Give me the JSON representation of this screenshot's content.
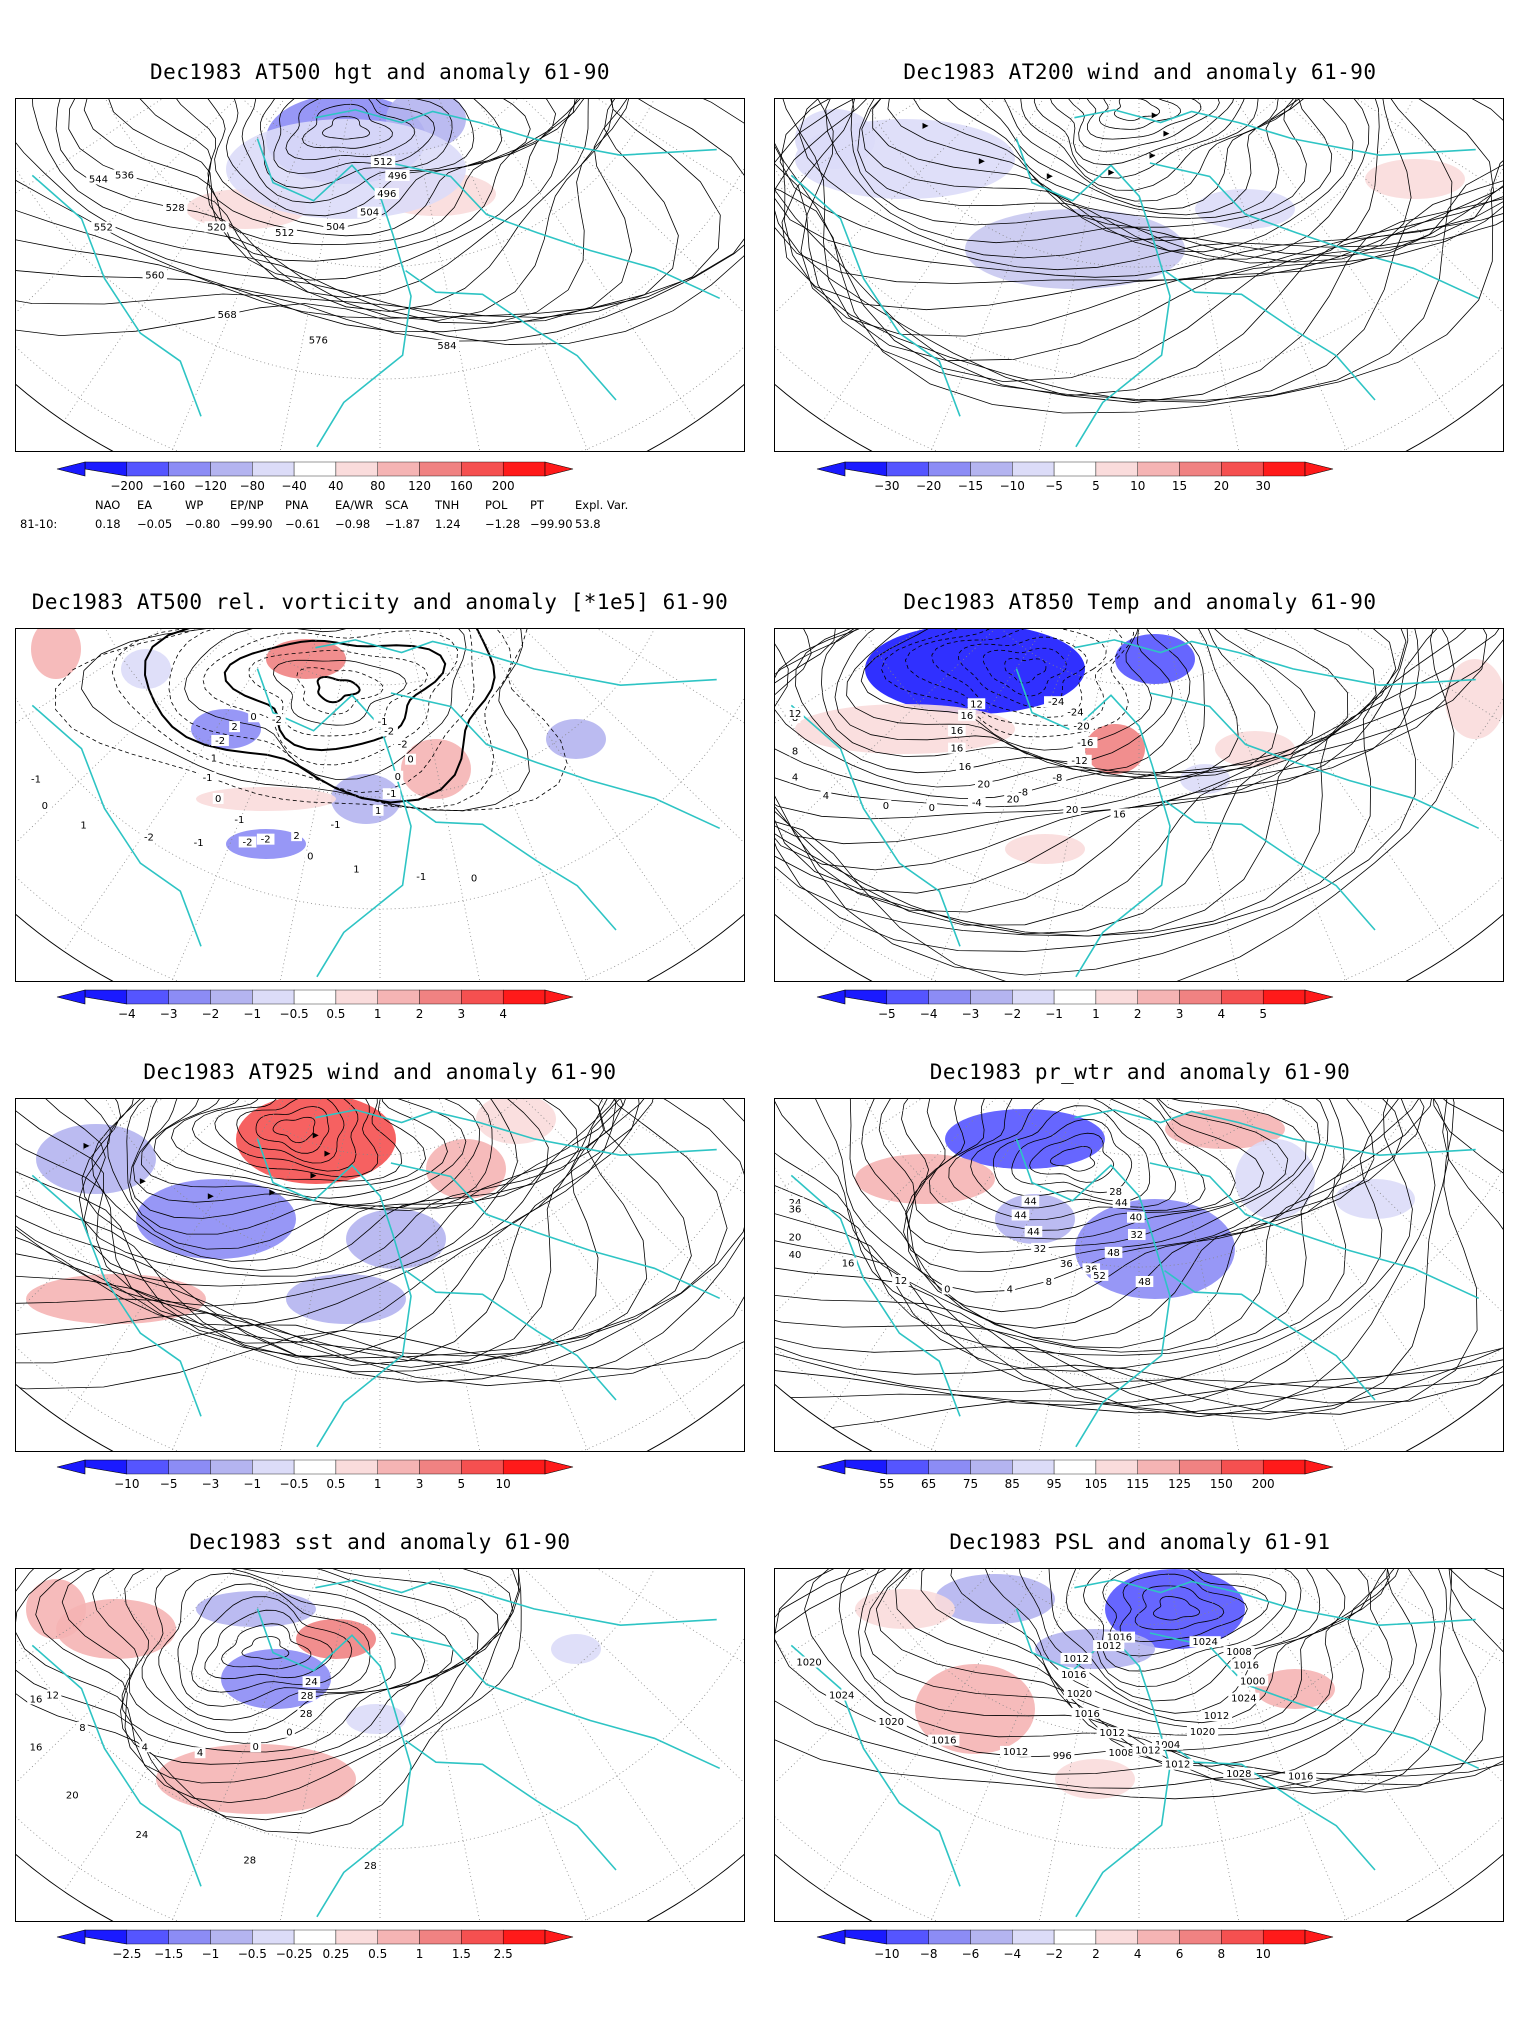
{
  "panels": [
    {
      "id": "p1",
      "title": "Dec1983 AT500 hgt and anomaly 61-90",
      "colorbar": [
        "−200",
        "−160",
        "−120",
        "−80",
        "−40",
        "40",
        "80",
        "120",
        "160",
        "200"
      ],
      "contour_labels": [
        "512",
        "496",
        "496",
        "504",
        "504",
        "512",
        "520",
        "528",
        "536",
        "544",
        "552",
        "560",
        "568",
        "576",
        "584"
      ]
    },
    {
      "id": "p2",
      "title": "Dec1983 AT200 wind and anomaly 61-90",
      "colorbar": [
        "−30",
        "−20",
        "−15",
        "−10",
        "−5",
        "5",
        "10",
        "15",
        "20",
        "30"
      ],
      "contour_labels": []
    },
    {
      "id": "p3",
      "title": "Dec1983 AT500 rel. vorticity and anomaly [*1e5] 61-90",
      "colorbar": [
        "−4",
        "−3",
        "−2",
        "−1",
        "−0.5",
        "0.5",
        "1",
        "2",
        "3",
        "4"
      ],
      "contour_labels": [
        "-1",
        "-2",
        "-2",
        "0",
        "0",
        "-1",
        "1",
        "-1",
        "2",
        "-2",
        "-1",
        "-2",
        "1",
        "0",
        "-1",
        "-2",
        "0",
        "2",
        "-2",
        "1",
        "-1",
        "0",
        "-1",
        "-2",
        "0",
        "1",
        "-1",
        "0"
      ]
    },
    {
      "id": "p4",
      "title": "Dec1983 AT850 Temp and anomaly 61-90",
      "colorbar": [
        "−5",
        "−4",
        "−3",
        "−2",
        "−1",
        "1",
        "2",
        "3",
        "4",
        "5"
      ],
      "contour_labels": [
        "-24",
        "-24",
        "-20",
        "-16",
        "-12",
        "-8",
        "-8",
        "-4",
        "0",
        "0",
        "4",
        "4",
        "8",
        "8",
        "12",
        "12",
        "16",
        "16",
        "16",
        "16",
        "20",
        "20",
        "20",
        "16"
      ]
    },
    {
      "id": "p5",
      "title": "Dec1983 AT925 wind and anomaly 61-90",
      "colorbar": [
        "−10",
        "−5",
        "−3",
        "−1",
        "−0.5",
        "0.5",
        "1",
        "3",
        "5",
        "10"
      ],
      "contour_labels": []
    },
    {
      "id": "p6",
      "title": "Dec1983 pr_wtr and anomaly 61-90",
      "colorbar": [
        "55",
        "65",
        "75",
        "85",
        "95",
        "105",
        "115",
        "125",
        "150",
        "200"
      ],
      "contour_labels": [
        "28",
        "44",
        "40",
        "32",
        "48",
        "36",
        "8",
        "4",
        "0",
        "12",
        "16",
        "20",
        "24",
        "36",
        "40",
        "44",
        "44",
        "44",
        "32",
        "36",
        "52",
        "48"
      ]
    },
    {
      "id": "p7",
      "title": "Dec1983 sst and anomaly 61-90",
      "colorbar": [
        "−2.5",
        "−1.5",
        "−1",
        "−0.5",
        "−0.25",
        "0.25",
        "0.5",
        "1",
        "1.5",
        "2.5"
      ],
      "contour_labels": [
        "24",
        "28",
        "28",
        "0",
        "0",
        "4",
        "4",
        "8",
        "12",
        "16",
        "16",
        "20",
        "24",
        "28",
        "28"
      ]
    },
    {
      "id": "p8",
      "title": "Dec1983 PSL and anomaly 61-91",
      "colorbar": [
        "−10",
        "−8",
        "−6",
        "−4",
        "−2",
        "2",
        "4",
        "6",
        "8",
        "10"
      ],
      "contour_labels": [
        "1024",
        "1008",
        "1016",
        "1000",
        "1024",
        "1012",
        "1020",
        "1004",
        "1008",
        "996",
        "1012",
        "1016",
        "1020",
        "1024",
        "1020",
        "1016",
        "1012",
        "1012",
        "1016",
        "1020",
        "1016",
        "1012",
        "1012",
        "1012",
        "1028",
        "1016"
      ]
    }
  ],
  "teleconnections": {
    "names": [
      "NAO",
      "EA",
      "WP",
      "EP/NP",
      "PNA",
      "EA/WR",
      "SCA",
      "TNH",
      "POL",
      "PT",
      "Expl. Var."
    ],
    "row_label": "81-10:",
    "values": [
      "0.18",
      "−0.05",
      "−0.80",
      "−99.90",
      "−0.61",
      "−0.98",
      "−1.87",
      "1.24",
      "−1.28",
      "−99.90",
      "53.8"
    ]
  },
  "colors": {
    "coast": "#2ec4c4",
    "neg_strong": "#1a1aff",
    "neg_light": "#c8c8f0",
    "pos_light": "#f5c8c8",
    "pos_strong": "#ff1a1a"
  }
}
